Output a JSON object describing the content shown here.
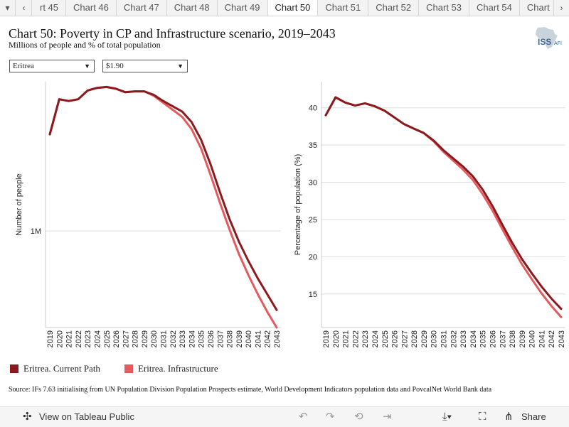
{
  "tabs": [
    "rt 45",
    "Chart 46",
    "Chart 47",
    "Chart 48",
    "Chart 49",
    "Chart 50",
    "Chart 51",
    "Chart 52",
    "Chart 53",
    "Chart 54",
    "Chart"
  ],
  "active_tab_index": 5,
  "title": "Chart 50: Poverty in CP and Infrastructure scenario, 2019–2043",
  "subtitle": "Millions of people and % of total population",
  "logo": {
    "text": "ISS",
    "suffix": "AFI"
  },
  "filters": {
    "country": "Eritrea",
    "poverty_line": "$1.90"
  },
  "chart_data": [
    {
      "type": "line",
      "ylabel": "Number of people",
      "y_ticks": [
        {
          "value": 1.0,
          "label": "1M"
        }
      ],
      "ylim": [
        0.45,
        1.85
      ],
      "x": [
        2019,
        2020,
        2021,
        2022,
        2023,
        2024,
        2025,
        2026,
        2027,
        2028,
        2029,
        2030,
        2031,
        2032,
        2033,
        2034,
        2035,
        2036,
        2037,
        2038,
        2039,
        2040,
        2041,
        2042,
        2043
      ],
      "series": [
        {
          "name": "Eritrea. Current Path",
          "color": "#8B1a1f",
          "values": [
            1.55,
            1.75,
            1.74,
            1.75,
            1.8,
            1.815,
            1.82,
            1.81,
            1.79,
            1.795,
            1.795,
            1.775,
            1.74,
            1.71,
            1.68,
            1.62,
            1.52,
            1.38,
            1.22,
            1.07,
            0.94,
            0.83,
            0.73,
            0.64,
            0.55
          ]
        },
        {
          "name": "Eritrea. Infrastructure",
          "color": "#e35a5f",
          "values": [
            1.55,
            1.75,
            1.74,
            1.75,
            1.8,
            1.815,
            1.82,
            1.81,
            1.79,
            1.795,
            1.795,
            1.77,
            1.73,
            1.69,
            1.65,
            1.58,
            1.47,
            1.32,
            1.16,
            1.01,
            0.87,
            0.75,
            0.64,
            0.54,
            0.45
          ]
        }
      ]
    },
    {
      "type": "line",
      "ylabel": "Percentage of population (%)",
      "y_ticks": [
        {
          "value": 40,
          "label": "40"
        },
        {
          "value": 35,
          "label": "35"
        },
        {
          "value": 30,
          "label": "30"
        },
        {
          "value": 25,
          "label": "25"
        },
        {
          "value": 20,
          "label": "20"
        },
        {
          "value": 15,
          "label": "15"
        }
      ],
      "ylim": [
        10.5,
        43.5
      ],
      "x": [
        2019,
        2020,
        2021,
        2022,
        2023,
        2024,
        2025,
        2026,
        2027,
        2028,
        2029,
        2030,
        2031,
        2032,
        2033,
        2034,
        2035,
        2036,
        2037,
        2038,
        2039,
        2040,
        2041,
        2042,
        2043
      ],
      "series": [
        {
          "name": "Eritrea. Current Path",
          "color": "#8B1a1f",
          "values": [
            39.0,
            41.4,
            40.7,
            40.3,
            40.6,
            40.2,
            39.6,
            38.7,
            37.8,
            37.2,
            36.6,
            35.6,
            34.3,
            33.2,
            32.1,
            30.8,
            29.0,
            26.8,
            24.3,
            21.9,
            19.7,
            17.8,
            16.0,
            14.4,
            13.0
          ]
        },
        {
          "name": "Eritrea. Infrastructure",
          "color": "#e35a5f",
          "values": [
            39.0,
            41.4,
            40.7,
            40.3,
            40.6,
            40.2,
            39.6,
            38.7,
            37.8,
            37.2,
            36.6,
            35.5,
            34.1,
            32.9,
            31.7,
            30.3,
            28.4,
            26.2,
            23.7,
            21.3,
            19.0,
            17.0,
            15.1,
            13.4,
            11.9
          ]
        }
      ]
    }
  ],
  "legend": [
    {
      "label": "Eritrea. Current Path",
      "color": "#8B1a1f"
    },
    {
      "label": "Eritrea. Infrastructure",
      "color": "#e35a5f"
    }
  ],
  "source": "Source: IFs 7.63 initialising from UN Population Division Population Prospects estimate, World Development Indicators population data and PovcalNet World Bank data",
  "toolbar": {
    "view_label": "View on Tableau Public",
    "share_label": "Share"
  }
}
